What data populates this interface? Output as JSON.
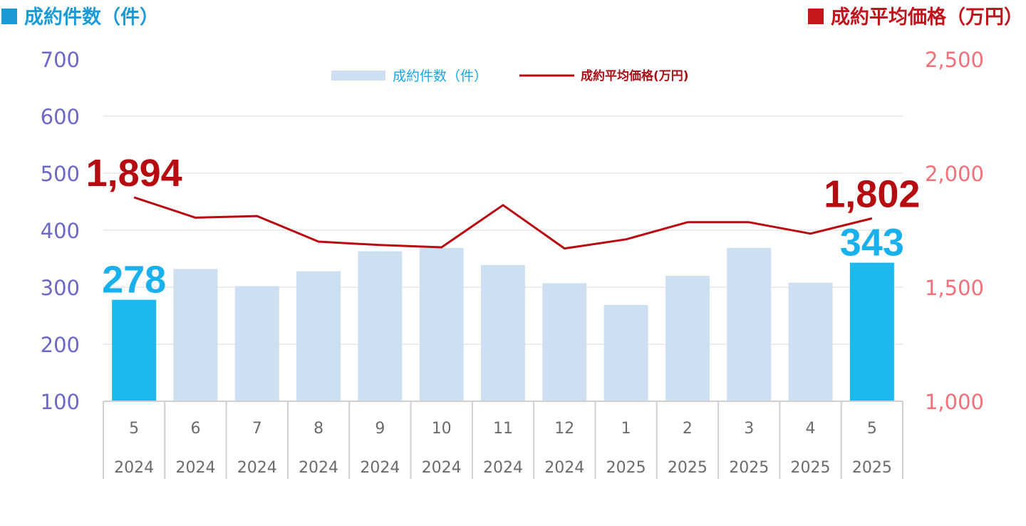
{
  "titles": {
    "left": "成約件数（件）",
    "right": "成約平均価格（万円）"
  },
  "colors": {
    "bar_default": "#cfdff2",
    "bar_highlight": "#1cb9ee",
    "line": "#b80c12",
    "left_axis": "#6b68c6",
    "right_axis": "#f2707a",
    "left_title": "#1a9bd8",
    "right_title": "#c0141c"
  },
  "chart_data": {
    "type": "bar",
    "categories": [
      "5",
      "6",
      "7",
      "8",
      "9",
      "10",
      "11",
      "12",
      "1",
      "2",
      "3",
      "4",
      "5"
    ],
    "years": [
      "2024",
      "2024",
      "2024",
      "2024",
      "2024",
      "2024",
      "2024",
      "2024",
      "2025",
      "2025",
      "2025",
      "2025",
      "2025"
    ],
    "series": [
      {
        "name": "成約件数（件）",
        "type": "bar",
        "axis": "left",
        "values": [
          278,
          332,
          302,
          328,
          363,
          369,
          339,
          307,
          269,
          320,
          369,
          308,
          343
        ],
        "highlight": [
          0,
          12
        ]
      },
      {
        "name": "成約平均価格(万円)",
        "type": "line",
        "axis": "right",
        "values": [
          1894,
          1805,
          1812,
          1700,
          1685,
          1675,
          1860,
          1670,
          1710,
          1785,
          1785,
          1735,
          1802
        ]
      }
    ],
    "left_axis": {
      "ylim": [
        100,
        700
      ],
      "ticks": [
        "100",
        "200",
        "300",
        "400",
        "500",
        "600",
        "700"
      ],
      "tick_values": [
        100,
        200,
        300,
        400,
        500,
        600,
        700
      ]
    },
    "right_axis": {
      "ylim": [
        1000,
        2500
      ],
      "ticks": [
        "1,000",
        "1,500",
        "2,000",
        "2,500"
      ],
      "tick_values": [
        1000,
        1500,
        2000,
        2500
      ]
    },
    "data_labels": {
      "bar": [
        {
          "index": 0,
          "text": "278"
        },
        {
          "index": 12,
          "text": "343"
        }
      ],
      "line": [
        {
          "index": 0,
          "text": "1,894"
        },
        {
          "index": 12,
          "text": "1,802"
        }
      ]
    },
    "legend": {
      "placement": "top-center",
      "bar_label": "成約件数（件）",
      "line_label": "成約平均価格(万円)"
    },
    "grid": true
  }
}
